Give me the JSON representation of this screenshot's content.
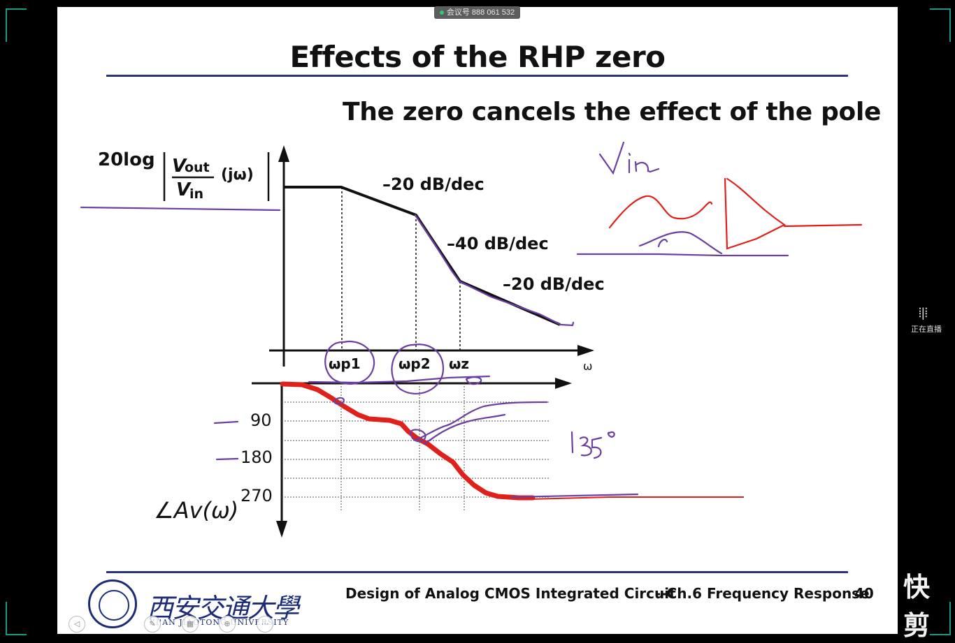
{
  "meeting": {
    "label": "会议号 888 061 532"
  },
  "slide": {
    "title": "Effects of the RHP zero",
    "subtitle": "The zero cancels the effect of the pole",
    "mag_label": "20log",
    "mag_frac_num": "V",
    "mag_frac_num_sub": "out",
    "mag_frac_den": "V",
    "mag_frac_den_sub": "in",
    "mag_arg": "(jω)",
    "slope_labels": [
      "–20 dB/dec",
      "–40 dB/dec",
      "–20 dB/dec"
    ],
    "freq_labels": [
      "ωp1",
      "ωp2",
      "ωz",
      "ω"
    ],
    "phase_ticks": [
      "90",
      "180",
      "270"
    ],
    "phase_label": "∠Av(ω)",
    "annotation_text": "135°",
    "footer_course": "Design of Analog CMOS Integrated Circuit",
    "footer_chapter": "--Ch.6 Frequency Response",
    "page_number": "40",
    "university_cn": "西安交通大學",
    "university_en": "XI'AN JIAOTONG UNIVERSITY"
  },
  "side_panel": {
    "live_label": "正在直播",
    "brand": "快剪"
  },
  "colors": {
    "accent_rule": "#2b3480",
    "pen_purple": "#6a3fa0",
    "pen_red": "#e0201b",
    "frame": "#1a9a86"
  }
}
